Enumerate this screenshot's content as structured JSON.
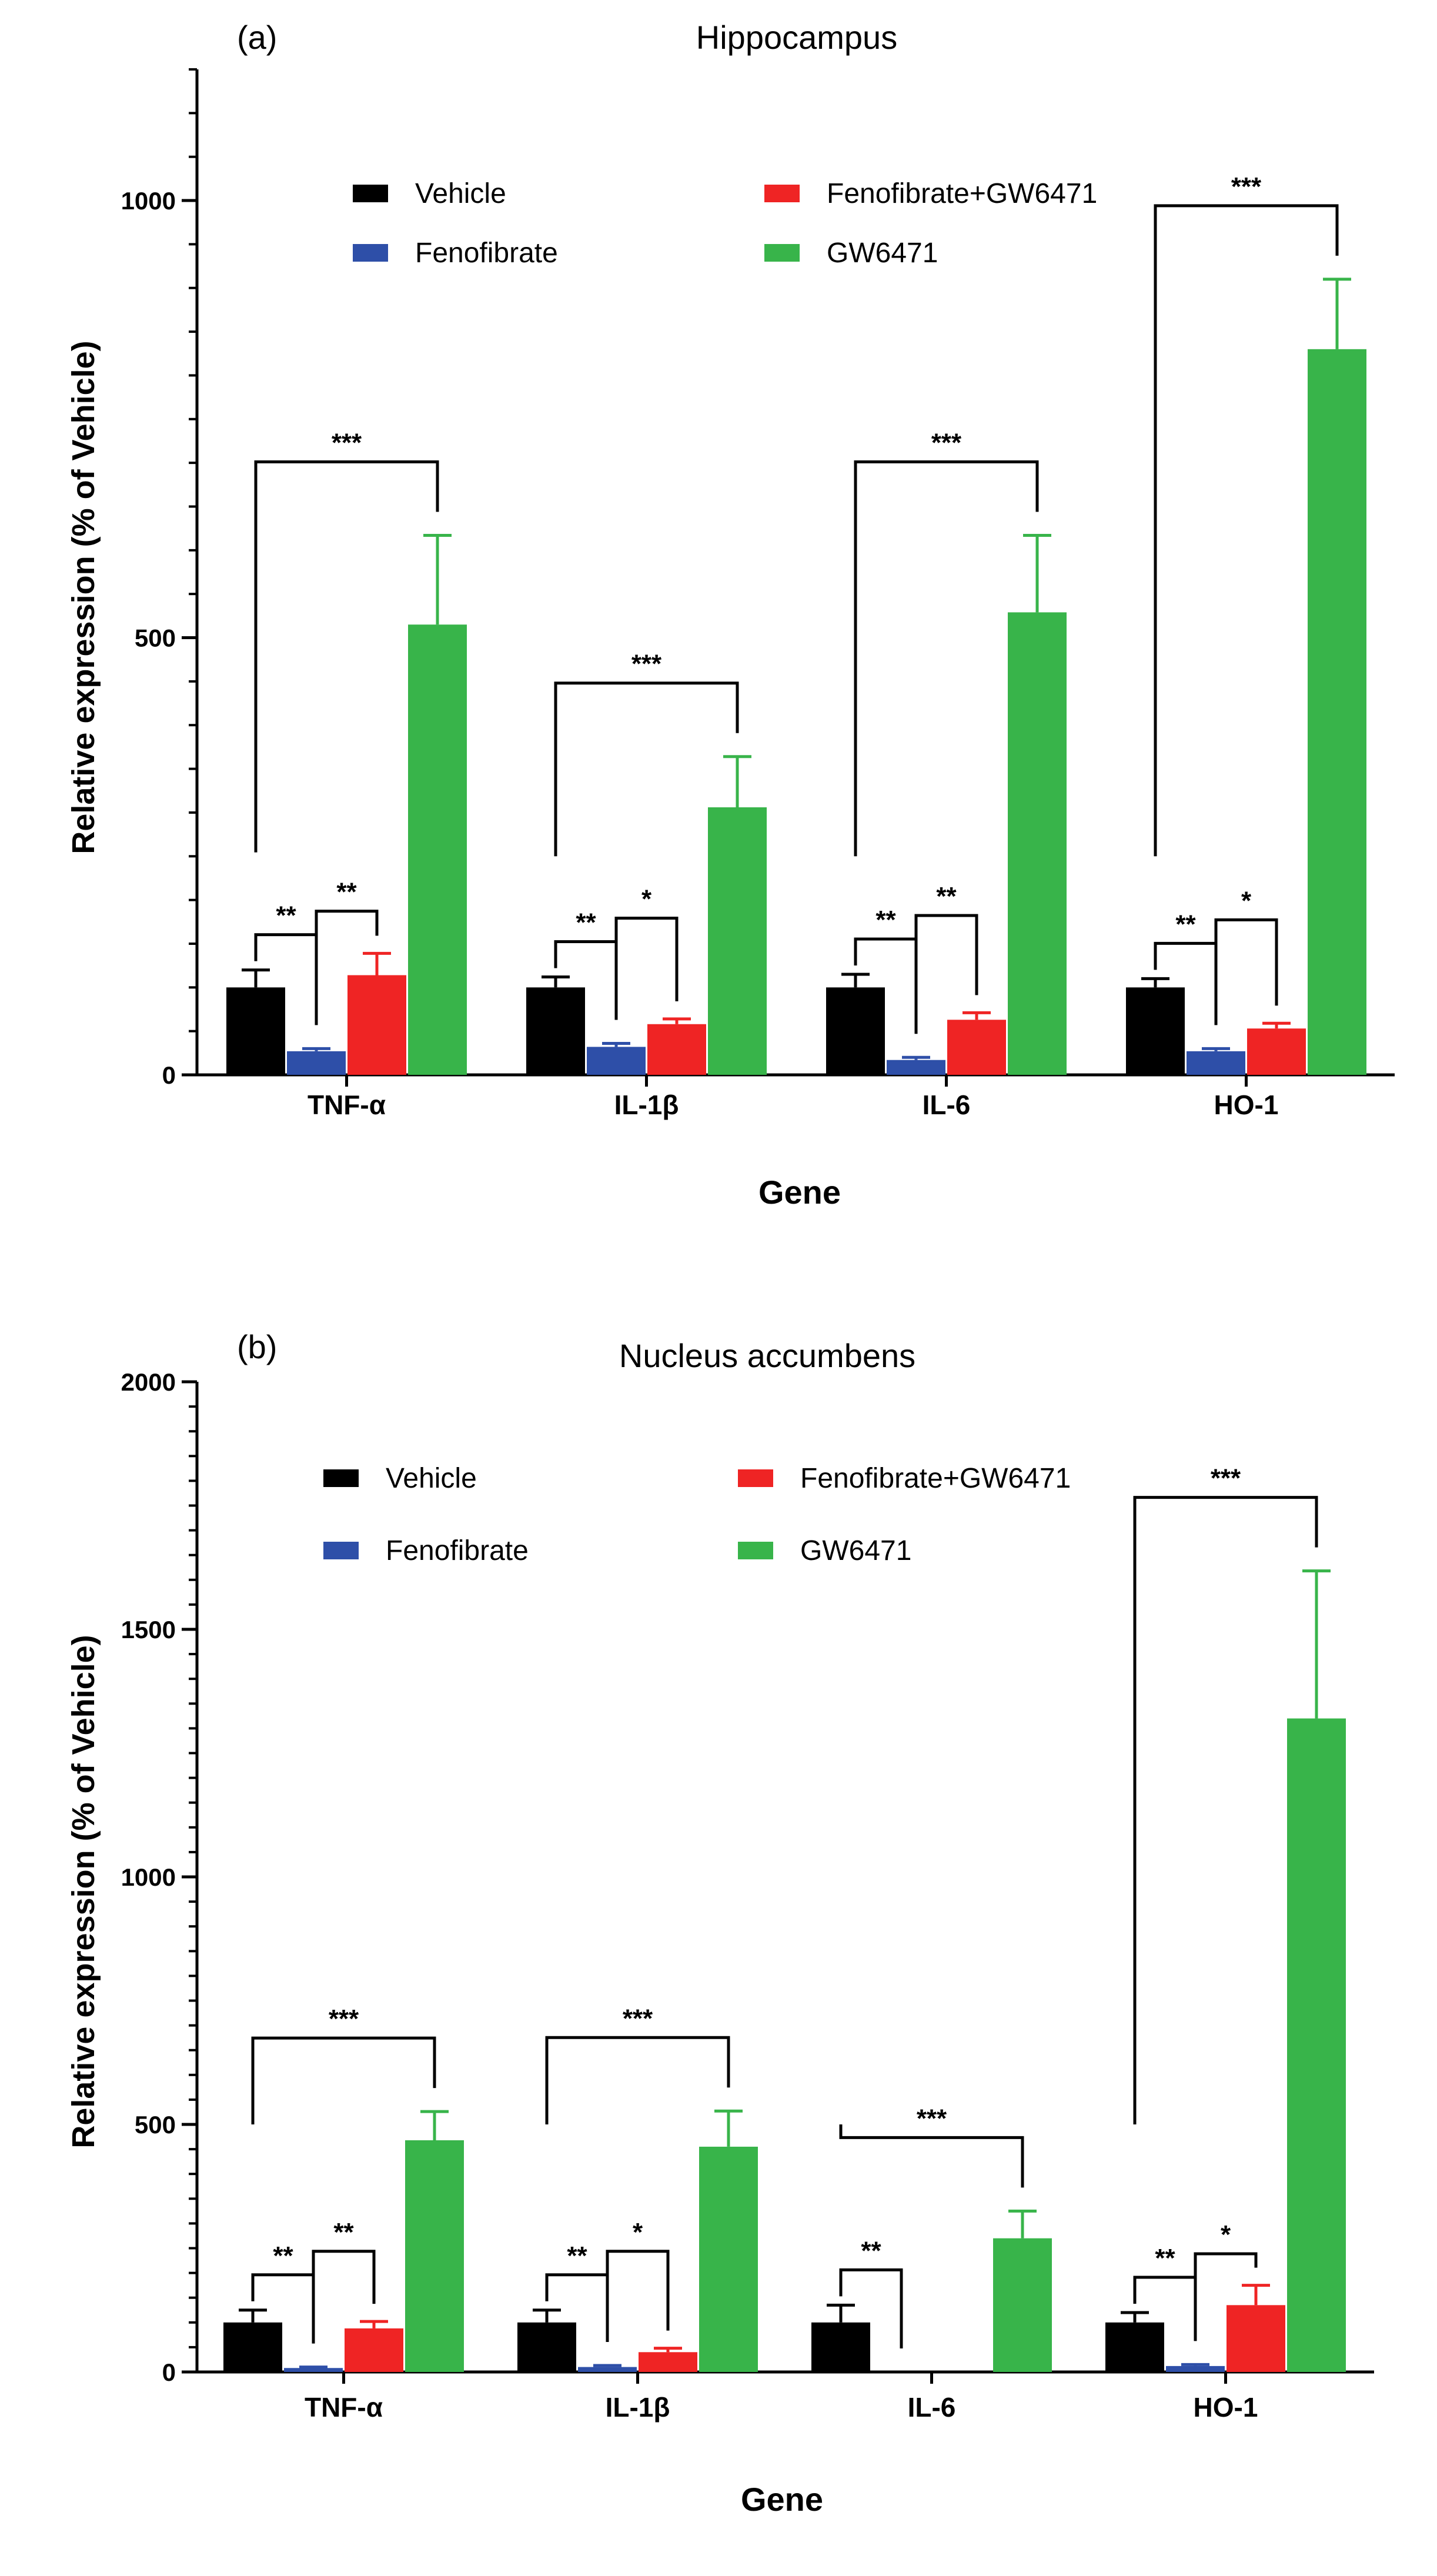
{
  "figure": {
    "colors": {
      "Vehicle": "#000000",
      "Fenofibrate": "#2E4FA8",
      "Fenofibrate+GW6471": "#EF2424",
      "GW6471": "#38B44A"
    },
    "legend_order": [
      "Vehicle",
      "Fenofibrate",
      "Fenofibrate+GW6471",
      "GW6471"
    ]
  },
  "chart_data": [
    {
      "type": "bar",
      "panel": "(a)",
      "title": "Hippocampus",
      "xlabel": "Gene",
      "ylabel": "Relative expression (% of Vehicle)",
      "ylim": [
        0,
        1000
      ],
      "yticks": [
        0,
        500,
        1000
      ],
      "ytick_labels": [
        "0",
        "500",
        "1000"
      ],
      "categories": [
        "TNF-α",
        "IL-1β",
        "IL-6",
        "HO-1"
      ],
      "series": [
        {
          "name": "Vehicle",
          "values": [
            100,
            100,
            100,
            100
          ],
          "errors": [
            20,
            12,
            15,
            10
          ]
        },
        {
          "name": "Fenofibrate",
          "values": [
            27,
            32,
            17,
            27
          ],
          "errors": [
            3,
            4,
            3,
            3
          ]
        },
        {
          "name": "Fenofibrate+GW6471",
          "values": [
            114,
            58,
            63,
            53
          ],
          "errors": [
            25,
            6,
            8,
            6
          ]
        },
        {
          "name": "GW6471",
          "values": [
            515,
            306,
            529,
            830
          ],
          "errors": [
            102,
            58,
            88,
            80
          ]
        }
      ],
      "significance": [
        {
          "stars": "***",
          "category": 0,
          "from": 0,
          "to": 3
        },
        {
          "stars": "**",
          "category": 0,
          "from": 0,
          "to": 1
        },
        {
          "stars": "**",
          "category": 0,
          "from": 1,
          "to": 2
        },
        {
          "stars": "***",
          "category": 1,
          "from": 0,
          "to": 3
        },
        {
          "stars": "**",
          "category": 1,
          "from": 0,
          "to": 1
        },
        {
          "stars": "*",
          "category": 1,
          "from": 1,
          "to": 2
        },
        {
          "stars": "***",
          "category": 2,
          "from": 0,
          "to": 3
        },
        {
          "stars": "**",
          "category": 2,
          "from": 0,
          "to": 1
        },
        {
          "stars": "**",
          "category": 2,
          "from": 1,
          "to": 2
        },
        {
          "stars": "***",
          "category": 3,
          "from": 0,
          "to": 3
        },
        {
          "stars": "**",
          "category": 3,
          "from": 0,
          "to": 1
        },
        {
          "stars": "*",
          "category": 3,
          "from": 1,
          "to": 2
        }
      ]
    },
    {
      "type": "bar",
      "panel": "(b)",
      "title": "Nucleus accumbens",
      "xlabel": "Gene",
      "ylabel": "Relative expression (% of Vehicle)",
      "ylim": [
        0,
        2000
      ],
      "yticks": [
        0,
        500,
        1000,
        1500,
        2000
      ],
      "ytick_labels": [
        "0",
        "500",
        "1000",
        "1500",
        "2000"
      ],
      "categories": [
        "TNF-α",
        "IL-1β",
        "IL-6",
        "HO-1"
      ],
      "series": [
        {
          "name": "Vehicle",
          "values": [
            100,
            100,
            100,
            100
          ],
          "errors": [
            25,
            25,
            35,
            20
          ]
        },
        {
          "name": "Fenofibrate",
          "values": [
            8,
            10,
            0,
            12
          ],
          "errors": [
            2,
            3,
            0,
            3
          ]
        },
        {
          "name": "Fenofibrate+GW6471",
          "values": [
            88,
            40,
            0,
            135
          ],
          "errors": [
            14,
            8,
            0,
            40
          ]
        },
        {
          "name": "GW6471",
          "values": [
            468,
            455,
            270,
            1320
          ],
          "errors": [
            58,
            72,
            55,
            298
          ]
        }
      ],
      "significance": [
        {
          "stars": "***",
          "category": 0,
          "from": 0,
          "to": 3
        },
        {
          "stars": "**",
          "category": 0,
          "from": 0,
          "to": 1
        },
        {
          "stars": "**",
          "category": 0,
          "from": 1,
          "to": 2
        },
        {
          "stars": "***",
          "category": 1,
          "from": 0,
          "to": 3
        },
        {
          "stars": "**",
          "category": 1,
          "from": 0,
          "to": 1
        },
        {
          "stars": "*",
          "category": 1,
          "from": 1,
          "to": 2
        },
        {
          "stars": "***",
          "category": 2,
          "from": 0,
          "to": 3
        },
        {
          "stars": "**",
          "category": 2,
          "from": 0,
          "to": 1
        },
        {
          "stars": "***",
          "category": 3,
          "from": 0,
          "to": 3
        },
        {
          "stars": "**",
          "category": 3,
          "from": 0,
          "to": 1
        },
        {
          "stars": "*",
          "category": 3,
          "from": 1,
          "to": 2
        }
      ]
    }
  ]
}
